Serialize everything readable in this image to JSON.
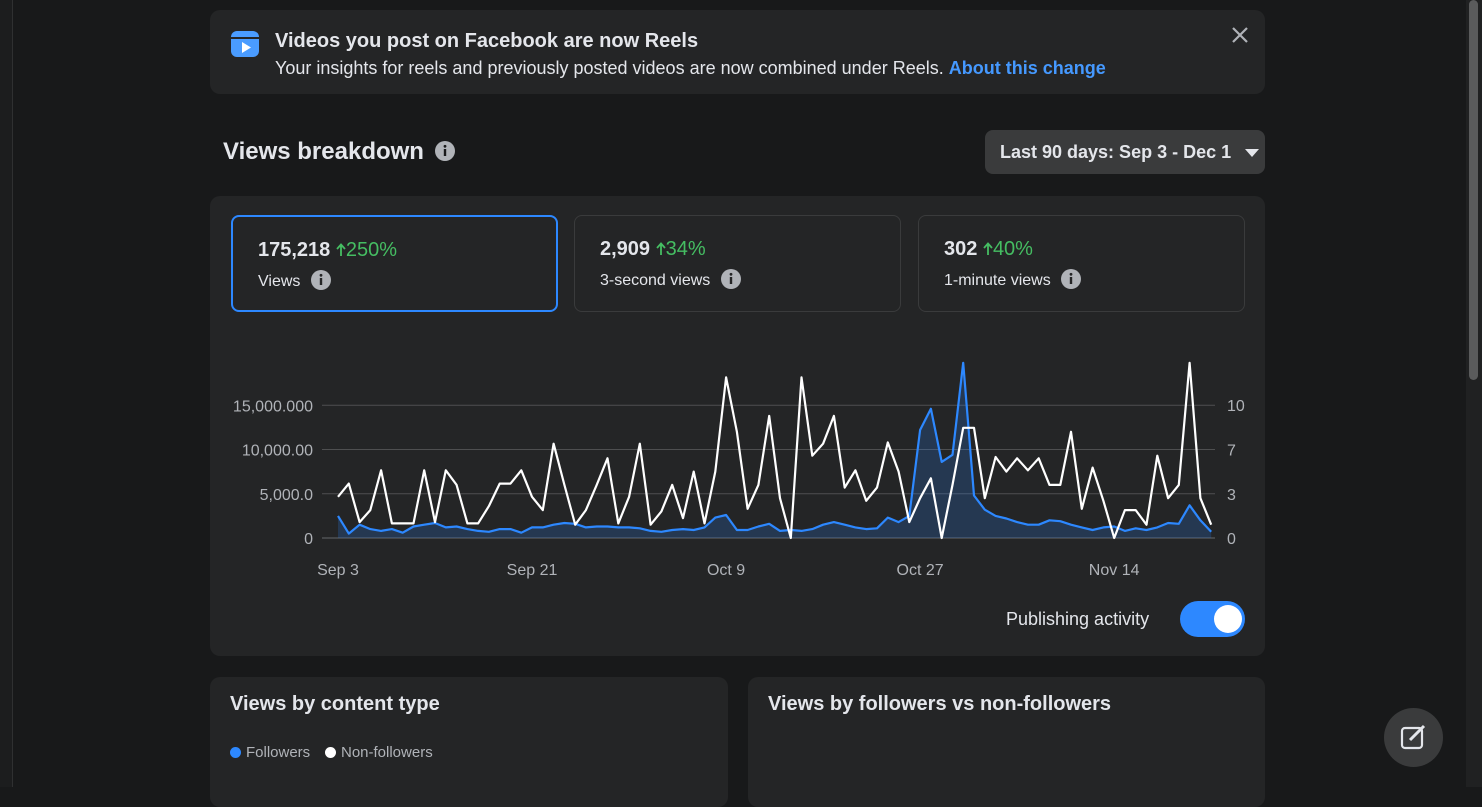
{
  "banner": {
    "title": "Videos you post on Facebook are now Reels",
    "text": "Your insights for reels and previously posted videos are now combined under Reels.",
    "link": "About this change"
  },
  "section_title": "Views breakdown",
  "date_range": "Last 90 days: Sep 3 - Dec 1",
  "metrics": [
    {
      "value": "175,218",
      "change": "250%",
      "label": "Views"
    },
    {
      "value": "2,909",
      "change": "34%",
      "label": "3-second views"
    },
    {
      "value": "302",
      "change": "40%",
      "label": "1-minute views"
    }
  ],
  "chart_data": {
    "type": "line",
    "categories": [
      "Sep 3",
      null,
      null,
      null,
      null,
      null,
      null,
      null,
      null,
      null,
      null,
      null,
      null,
      null,
      null,
      null,
      null,
      null,
      "Sep 21",
      null,
      null,
      null,
      null,
      null,
      null,
      null,
      null,
      null,
      null,
      null,
      null,
      null,
      null,
      null,
      null,
      null,
      "Oct 9",
      null,
      null,
      null,
      null,
      null,
      null,
      null,
      null,
      null,
      null,
      null,
      null,
      null,
      null,
      null,
      null,
      null,
      "Oct 27",
      null,
      null,
      null,
      null,
      null,
      null,
      null,
      null,
      null,
      null,
      null,
      null,
      null,
      null,
      null,
      null,
      null,
      "Nov 14",
      null,
      null,
      null,
      null,
      null,
      null,
      null,
      null,
      null
    ],
    "series": [
      {
        "color": "#2d88ff",
        "axis": "y",
        "values": [
          2500,
          500,
          1500,
          1000,
          800,
          1000,
          600,
          1300,
          1500,
          1700,
          1200,
          1300,
          1000,
          800,
          700,
          1000,
          1000,
          600,
          1200,
          1200,
          1500,
          1700,
          1600,
          1200,
          1300,
          1300,
          1200,
          1200,
          1100,
          800,
          700,
          900,
          1000,
          900,
          1200,
          2300,
          2600,
          900,
          900,
          1300,
          1600,
          800,
          900,
          800,
          1000,
          1500,
          1800,
          1500,
          1200,
          1000,
          1100,
          2300,
          1800,
          2500,
          12200,
          14600,
          8600,
          9400,
          19800,
          4800,
          3200,
          2500,
          2200,
          1800,
          1500,
          1500,
          2000,
          1900,
          1500,
          1200,
          900,
          1200,
          1300,
          800,
          1100,
          900,
          1200,
          1700,
          1600,
          3700,
          2000,
          700
        ]
      },
      {
        "color": "#ffffff",
        "axis": "y2",
        "values": [
          3.1,
          4.1,
          1.2,
          2.1,
          5.1,
          1.1,
          1.1,
          1.1,
          5.1,
          1.2,
          5.1,
          4,
          1.1,
          1.1,
          2.4,
          4.1,
          4.1,
          5.1,
          3.1,
          2.1,
          7.1,
          4,
          1,
          2.1,
          4,
          6,
          1.1,
          3.1,
          7.1,
          1,
          2,
          4,
          1.5,
          5,
          1.1,
          5,
          12.1,
          8,
          2.2,
          4,
          9.2,
          3,
          0,
          12.1,
          6.2,
          7.1,
          9.2,
          3.8,
          5.1,
          2.8,
          3.8,
          7.2,
          5,
          1.2,
          3,
          4.5,
          0,
          4,
          8.3,
          8.3,
          3,
          6.1,
          5,
          6,
          5.1,
          6,
          4,
          4,
          8,
          2.2,
          5.3,
          2.8,
          0,
          2.1,
          2.1,
          1,
          6.2,
          3,
          4,
          13.2,
          3,
          1
        ]
      }
    ],
    "ylim": [
      0,
      20000
    ],
    "yticks": [
      0,
      {
        "value": 5000,
        "label": "5,000.0"
      },
      {
        "value": 10000,
        "label": "10,000.00"
      },
      {
        "value": 15000,
        "label": "15,000.000"
      }
    ],
    "y2lim": [
      0,
      13.333
    ],
    "y2ticks": [
      0,
      {
        "value": 3.333,
        "label": "3"
      },
      {
        "value": 6.667,
        "label": "7"
      },
      10
    ],
    "grid": true
  },
  "toggle_label": "Publishing activity",
  "cards": [
    {
      "title": "Views by content type",
      "legend": [
        "Followers",
        "Non-followers"
      ]
    },
    {
      "title": "Views by followers vs non-followers"
    }
  ]
}
